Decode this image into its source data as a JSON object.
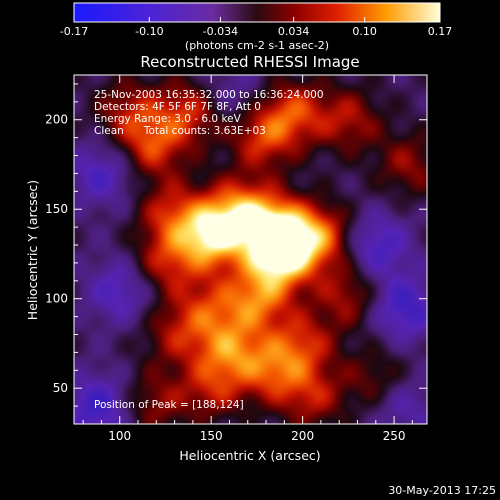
{
  "chart_data": {
    "type": "heatmap",
    "title": "Reconstructed RHESSI Image",
    "xlabel": "Heliocentric X (arcsec)",
    "ylabel": "Heliocentric Y (arcsec)",
    "xlim": [
      75,
      268
    ],
    "ylim": [
      30,
      225
    ],
    "x_ticks": [
      100,
      150,
      200,
      250
    ],
    "y_ticks": [
      50,
      100,
      150,
      200
    ],
    "colorbar": {
      "min": -0.17,
      "max": 0.17,
      "ticks": [
        "-0.17",
        "-0.10",
        "-0.034",
        "0.034",
        "0.10",
        "0.17"
      ],
      "unit_label": "(photons cm-2 s-1 asec-2)"
    },
    "annotations": [
      "25-Nov-2003 16:35:32.000 to 16:36:24.000",
      "Detectors: 4F 5F 6F 7F 8F, Att 0",
      "Energy Range: 3.0 - 6.0 keV",
      "Clean      Total counts: 3.63E+03"
    ],
    "peak_label": "Position of Peak = [188,124]",
    "peak": [
      188,
      124
    ],
    "sources": [
      {
        "x": 150,
        "y": 135,
        "value": 0.17
      },
      {
        "x": 188,
        "y": 124,
        "value": 0.17
      },
      {
        "x": 185,
        "y": 140,
        "value": 0.15
      },
      {
        "x": 210,
        "y": 135,
        "value": 0.12
      },
      {
        "x": 165,
        "y": 150,
        "value": 0.12
      },
      {
        "x": 128,
        "y": 148,
        "value": 0.09
      },
      {
        "x": 125,
        "y": 120,
        "value": 0.09
      },
      {
        "x": 118,
        "y": 185,
        "value": 0.1
      },
      {
        "x": 138,
        "y": 205,
        "value": 0.1
      },
      {
        "x": 105,
        "y": 205,
        "value": 0.08
      },
      {
        "x": 178,
        "y": 190,
        "value": 0.1
      },
      {
        "x": 195,
        "y": 205,
        "value": 0.1
      },
      {
        "x": 225,
        "y": 200,
        "value": 0.08
      },
      {
        "x": 175,
        "y": 100,
        "value": 0.12
      },
      {
        "x": 148,
        "y": 95,
        "value": 0.08
      },
      {
        "x": 225,
        "y": 102,
        "value": 0.08
      },
      {
        "x": 160,
        "y": 72,
        "value": 0.11
      },
      {
        "x": 183,
        "y": 60,
        "value": 0.1
      },
      {
        "x": 200,
        "y": 75,
        "value": 0.09
      },
      {
        "x": 130,
        "y": 80,
        "value": 0.07
      },
      {
        "x": 150,
        "y": 50,
        "value": 0.08
      },
      {
        "x": 118,
        "y": 42,
        "value": 0.07
      },
      {
        "x": 205,
        "y": 45,
        "value": 0.08
      },
      {
        "x": 240,
        "y": 55,
        "value": 0.06
      },
      {
        "x": 258,
        "y": 175,
        "value": 0.07
      },
      {
        "x": 90,
        "y": 170,
        "value": -0.08
      },
      {
        "x": 240,
        "y": 130,
        "value": -0.09
      },
      {
        "x": 255,
        "y": 95,
        "value": -0.1
      },
      {
        "x": 100,
        "y": 105,
        "value": -0.08
      },
      {
        "x": 88,
        "y": 40,
        "value": -0.1
      },
      {
        "x": 255,
        "y": 40,
        "value": -0.06
      },
      {
        "x": 160,
        "y": 215,
        "value": -0.05
      }
    ]
  },
  "footer": {
    "timestamp": "30-May-2013 17:25"
  },
  "colors": {
    "background": "#000000",
    "text": "#ffffff"
  }
}
